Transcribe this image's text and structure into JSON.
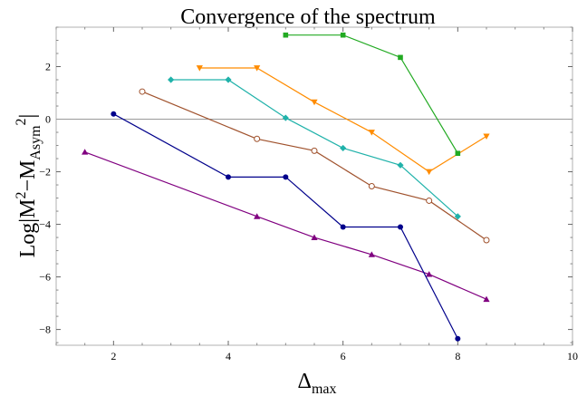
{
  "chart_data": {
    "type": "line",
    "title": "Convergence of the spectrum",
    "xlabel": "Δ",
    "xlabel_sub": "max",
    "ylabel": "Log|M",
    "ylabel_sup": "2",
    "ylabel_mid": "−M",
    "ylabel_sub": "Asym",
    "ylabel_sup2": "2",
    "ylabel_end": "|",
    "xlim": [
      1,
      10
    ],
    "ylim": [
      -8.6,
      3.5
    ],
    "xticks": [
      2,
      4,
      6,
      8,
      10
    ],
    "yticks": [
      -8,
      -6,
      -4,
      -2,
      0,
      2
    ],
    "xtick_labels": [
      "2",
      "4",
      "6",
      "8",
      "10"
    ],
    "ytick_labels": [
      "−8",
      "−6",
      "−4",
      "−2",
      "0",
      "2"
    ],
    "grid": false,
    "reference_line_y": 0,
    "series": [
      {
        "color": "#800080",
        "marker": "triangle-up",
        "x": [
          1.5,
          4.5,
          5.5,
          6.5,
          7.5,
          8.5
        ],
        "y": [
          -1.25,
          -3.7,
          -4.5,
          -5.15,
          -5.9,
          -6.85
        ]
      },
      {
        "color": "#00008b",
        "marker": "circle",
        "x": [
          2,
          4,
          5,
          6,
          7,
          8
        ],
        "y": [
          0.2,
          -2.2,
          -2.2,
          -4.1,
          -4.1,
          -8.35
        ]
      },
      {
        "color": "#a0522d",
        "marker": "open-circle",
        "x": [
          2.5,
          4.5,
          5.5,
          6.5,
          7.5,
          8.5
        ],
        "y": [
          1.05,
          -0.75,
          -1.2,
          -2.55,
          -3.1,
          -4.6
        ]
      },
      {
        "color": "#20b2aa",
        "marker": "diamond",
        "x": [
          3,
          4,
          5,
          6,
          7,
          8
        ],
        "y": [
          1.5,
          1.5,
          0.05,
          -1.1,
          -1.75,
          -3.7
        ]
      },
      {
        "color": "#ff8c00",
        "marker": "triangle-down",
        "x": [
          3.5,
          4.5,
          5.5,
          6.5,
          7.5,
          8.5
        ],
        "y": [
          1.95,
          1.95,
          0.65,
          -0.5,
          -2.0,
          -0.65
        ]
      },
      {
        "color": "#22aa22",
        "marker": "square",
        "x": [
          5,
          6,
          7,
          8
        ],
        "y": [
          3.2,
          3.2,
          2.35,
          -1.3
        ]
      }
    ]
  }
}
